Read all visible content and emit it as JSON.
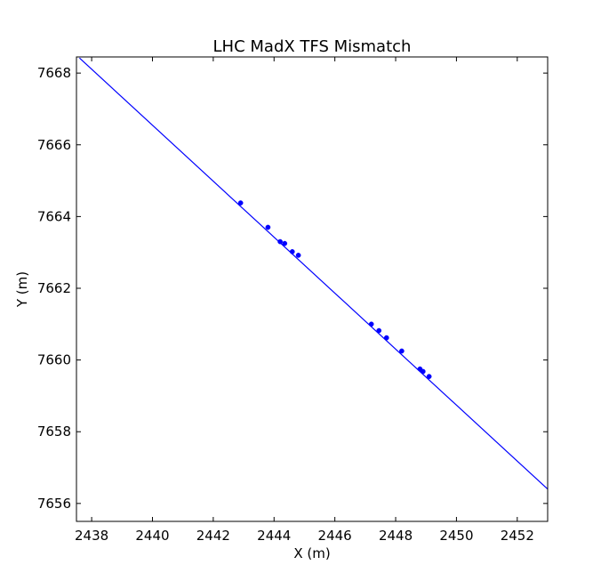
{
  "chart_data": {
    "type": "line",
    "title": "LHC MadX TFS Mismatch",
    "xlabel": "X (m)",
    "ylabel": "Y (m)",
    "xlim": [
      2437.5,
      2453.0
    ],
    "ylim": [
      7655.5,
      7668.45
    ],
    "xticks": [
      2438,
      2440,
      2442,
      2444,
      2446,
      2448,
      2450,
      2452
    ],
    "yticks": [
      7656,
      7658,
      7660,
      7662,
      7664,
      7666,
      7668
    ],
    "xtick_labels": [
      "2438",
      "2440",
      "2442",
      "2444",
      "2446",
      "2448",
      "2450",
      "2452"
    ],
    "ytick_labels": [
      "7656",
      "7658",
      "7660",
      "7662",
      "7664",
      "7666",
      "7668"
    ],
    "grid": false,
    "legend": false,
    "colors": {
      "series": "#0000ff",
      "axes": "#000000",
      "background": "#ffffff"
    },
    "series": [
      {
        "style": "line",
        "x": [
          2437.6,
          2453.0
        ],
        "y": [
          7668.42,
          7656.4
        ]
      },
      {
        "style": "markers",
        "x": [
          2442.9,
          2443.8,
          2444.2,
          2444.35,
          2444.6,
          2444.8,
          2447.2,
          2447.45,
          2447.7,
          2448.2,
          2448.8,
          2448.9,
          2449.1
        ],
        "y": [
          7664.38,
          7663.7,
          7663.3,
          7663.25,
          7663.02,
          7662.92,
          7661.0,
          7660.82,
          7660.62,
          7660.25,
          7659.75,
          7659.68,
          7659.54
        ]
      }
    ]
  }
}
